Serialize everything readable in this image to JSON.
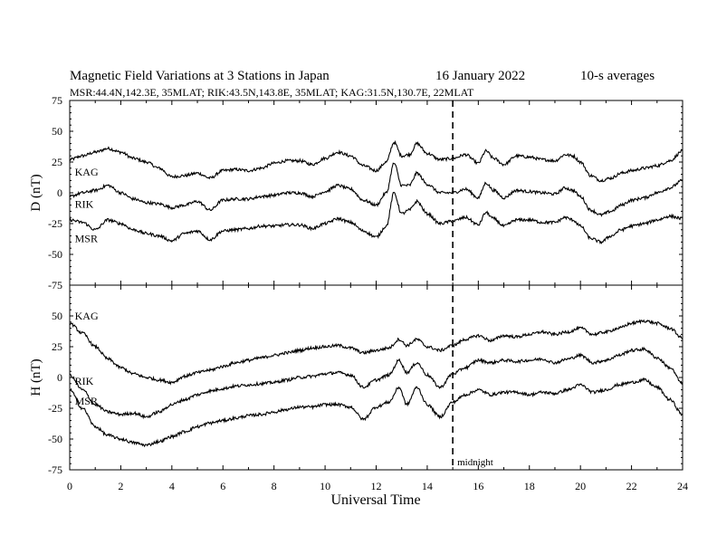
{
  "chart_data": {
    "type": "line",
    "title": "Magnetic Field Variations at 3 Stations in Japan",
    "date": "16 January 2022",
    "averaging": "10-s averages",
    "subtitle": "MSR:44.4N,142.3E, 35MLAT;  RIK:43.5N,143.8E, 35MLAT;  KAG:31.5N,130.7E, 22MLAT",
    "xlabel": "Universal Time",
    "xlim": [
      0,
      24
    ],
    "xticks": [
      "0",
      "2",
      "4",
      "6",
      "8",
      "10",
      "12",
      "14",
      "16",
      "18",
      "20",
      "22",
      "24"
    ],
    "annotation": {
      "text": "midnight",
      "x": 15
    },
    "panels": [
      {
        "ylabel": "D (nT)",
        "ylim": [
          -75,
          75
        ],
        "yticks": [
          "75",
          "50",
          "25",
          "0",
          "-25",
          "-50",
          "-75"
        ],
        "series": [
          {
            "name": "KAG",
            "label_at": [
              0.2,
              14
            ],
            "x": [
              0,
              0.5,
              1,
              1.5,
              2,
              2.5,
              3,
              3.5,
              4,
              4.5,
              5,
              5.5,
              6,
              6.5,
              7,
              7.5,
              8,
              8.5,
              9,
              9.5,
              10,
              10.5,
              11,
              11.5,
              12,
              12.4,
              12.7,
              13,
              13.3,
              13.6,
              14,
              14.5,
              15,
              15.5,
              16,
              16.3,
              16.6,
              17,
              17.5,
              18,
              18.5,
              19,
              19.4,
              19.7,
              20,
              20.4,
              20.8,
              21.2,
              21.6,
              22,
              22.5,
              23,
              23.5,
              24
            ],
            "y": [
              27,
              30,
              33,
              36,
              33,
              28,
              25,
              20,
              13,
              14,
              16,
              12,
              18,
              19,
              18,
              20,
              24,
              26,
              26,
              23,
              28,
              33,
              30,
              22,
              18,
              25,
              41,
              30,
              31,
              40,
              32,
              27,
              28,
              31,
              24,
              34,
              28,
              23,
              30,
              29,
              27,
              26,
              31,
              30,
              25,
              14,
              10,
              12,
              16,
              18,
              20,
              22,
              26,
              34
            ]
          },
          {
            "name": "RIK",
            "label_at": [
              0.2,
              -12
            ],
            "x": [
              0,
              0.5,
              1,
              1.5,
              2,
              2.5,
              3,
              3.5,
              4,
              4.5,
              5,
              5.5,
              6,
              6.5,
              7,
              7.5,
              8,
              8.5,
              9,
              9.5,
              10,
              10.5,
              11,
              11.5,
              12,
              12.4,
              12.7,
              13,
              13.3,
              13.6,
              14,
              14.5,
              15,
              15.5,
              16,
              16.3,
              16.6,
              17,
              17.5,
              18,
              18.5,
              19,
              19.4,
              19.7,
              20,
              20.4,
              20.8,
              21.2,
              21.6,
              22,
              22.5,
              23,
              23.5,
              24
            ],
            "y": [
              -3,
              0,
              2,
              6,
              0,
              -5,
              -8,
              -9,
              -12,
              -10,
              -7,
              -14,
              -6,
              -5,
              -5,
              -3,
              -2,
              0,
              0,
              -3,
              1,
              6,
              3,
              -6,
              -10,
              0,
              24,
              6,
              6,
              16,
              7,
              0,
              0,
              3,
              -4,
              8,
              2,
              -4,
              2,
              1,
              0,
              -1,
              4,
              2,
              -3,
              -14,
              -18,
              -15,
              -10,
              -6,
              -4,
              0,
              4,
              10
            ]
          },
          {
            "name": "MSR",
            "label_at": [
              0.2,
              -40
            ],
            "x": [
              0,
              0.5,
              1,
              1.5,
              2,
              2.5,
              3,
              3.5,
              4,
              4.5,
              5,
              5.5,
              6,
              6.5,
              7,
              7.5,
              8,
              8.5,
              9,
              9.5,
              10,
              10.5,
              11,
              11.5,
              12,
              12.4,
              12.7,
              13,
              13.3,
              13.6,
              14,
              14.5,
              15,
              15.5,
              16,
              16.3,
              16.6,
              17,
              17.5,
              18,
              18.5,
              19,
              19.4,
              19.7,
              20,
              20.4,
              20.8,
              21.2,
              21.6,
              22,
              22.5,
              23,
              23.5,
              24
            ],
            "y": [
              -22,
              -24,
              -30,
              -22,
              -25,
              -30,
              -33,
              -35,
              -39,
              -33,
              -31,
              -38,
              -31,
              -30,
              -29,
              -27,
              -27,
              -26,
              -26,
              -29,
              -25,
              -21,
              -24,
              -31,
              -36,
              -27,
              0,
              -17,
              -14,
              -7,
              -17,
              -25,
              -23,
              -20,
              -26,
              -16,
              -21,
              -27,
              -22,
              -22,
              -24,
              -24,
              -20,
              -22,
              -27,
              -37,
              -40,
              -35,
              -30,
              -27,
              -25,
              -22,
              -19,
              -21
            ]
          }
        ]
      },
      {
        "ylabel": "H (nT)",
        "ylim": [
          -75,
          75
        ],
        "yticks": [
          "75",
          "50",
          "25",
          "0",
          "-25",
          "-50",
          "-75"
        ],
        "series": [
          {
            "name": "KAG",
            "label_at": [
              0.2,
              47
            ],
            "x": [
              0,
              0.5,
              1,
              1.5,
              2,
              2.5,
              3,
              3.5,
              4,
              4.5,
              5,
              5.5,
              6,
              6.5,
              7,
              7.5,
              8,
              8.5,
              9,
              9.5,
              10,
              10.5,
              11,
              11.5,
              12,
              12.5,
              12.9,
              13.2,
              13.6,
              14,
              14.5,
              15,
              15.5,
              16,
              16.5,
              17,
              17.5,
              18,
              18.5,
              19,
              19.5,
              20,
              20.5,
              21,
              21.5,
              22,
              22.5,
              23,
              23.5,
              24
            ],
            "y": [
              44,
              36,
              25,
              15,
              8,
              3,
              0,
              -2,
              -4,
              1,
              4,
              6,
              9,
              12,
              14,
              16,
              18,
              20,
              22,
              24,
              25,
              26,
              24,
              20,
              22,
              24,
              31,
              26,
              31,
              25,
              22,
              26,
              31,
              34,
              30,
              34,
              33,
              35,
              37,
              35,
              37,
              40,
              35,
              37,
              40,
              44,
              46,
              44,
              40,
              32
            ]
          },
          {
            "name": "RIK",
            "label_at": [
              0.2,
              -6
            ],
            "x": [
              0,
              0.5,
              1,
              1.5,
              2,
              2.5,
              3,
              3.5,
              4,
              4.5,
              5,
              5.5,
              6,
              6.5,
              7,
              7.5,
              8,
              8.5,
              9,
              9.5,
              10,
              10.5,
              11,
              11.5,
              12,
              12.5,
              12.9,
              13.2,
              13.6,
              14,
              14.5,
              15,
              15.5,
              16,
              16.5,
              17,
              17.5,
              18,
              18.5,
              19,
              19.5,
              20,
              20.5,
              21,
              21.5,
              22,
              22.5,
              23,
              23.5,
              24
            ],
            "y": [
              2,
              -10,
              -22,
              -28,
              -30,
              -29,
              -32,
              -28,
              -22,
              -18,
              -14,
              -11,
              -9,
              -7,
              -6,
              -5,
              -4,
              -2,
              0,
              1,
              3,
              4,
              2,
              -8,
              -2,
              2,
              14,
              4,
              12,
              2,
              -8,
              3,
              8,
              14,
              12,
              14,
              13,
              14,
              15,
              12,
              15,
              18,
              12,
              14,
              18,
              22,
              23,
              16,
              8,
              -5
            ]
          },
          {
            "name": "MSR",
            "label_at": [
              0.2,
              -22
            ],
            "x": [
              0,
              0.5,
              1,
              1.5,
              2,
              2.5,
              3,
              3.5,
              4,
              4.5,
              5,
              5.5,
              6,
              6.5,
              7,
              7.5,
              8,
              8.5,
              9,
              9.5,
              10,
              10.5,
              11,
              11.5,
              12,
              12.5,
              12.9,
              13.2,
              13.6,
              14,
              14.5,
              15,
              15.5,
              16,
              16.5,
              17,
              17.5,
              18,
              18.5,
              19,
              19.5,
              20,
              20.5,
              21,
              21.5,
              22,
              22.5,
              23,
              23.5,
              24
            ],
            "y": [
              -10,
              -25,
              -40,
              -47,
              -50,
              -53,
              -55,
              -52,
              -48,
              -44,
              -40,
              -37,
              -35,
              -33,
              -31,
              -30,
              -28,
              -26,
              -24,
              -24,
              -22,
              -22,
              -24,
              -34,
              -24,
              -20,
              -8,
              -22,
              -8,
              -22,
              -32,
              -20,
              -14,
              -10,
              -14,
              -12,
              -12,
              -14,
              -12,
              -13,
              -10,
              -6,
              -12,
              -10,
              -6,
              -4,
              -2,
              -8,
              -18,
              -30
            ]
          }
        ]
      }
    ]
  }
}
